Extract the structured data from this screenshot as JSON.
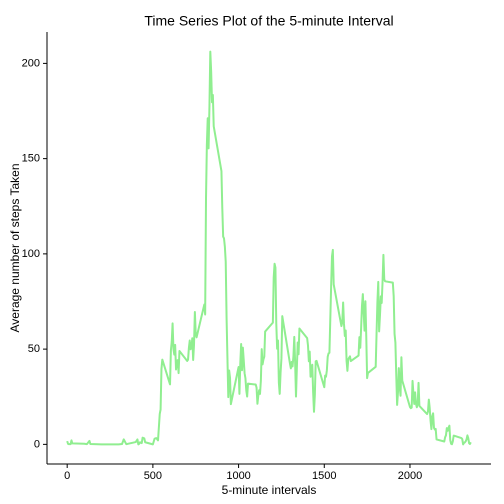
{
  "chart_data": {
    "type": "line",
    "title": "Time Series Plot of the 5-minute Interval",
    "x_label": "5-minute intervals",
    "y_label": "Average number of steps Taken",
    "xlim": [
      -117.75,
      2472.75
    ],
    "xticks": [
      0,
      500,
      1000,
      1500,
      2000
    ],
    "ylim": [
      -10.31,
      216.48
    ],
    "yticks": [
      0,
      50,
      100,
      150,
      200
    ],
    "grid": false,
    "x": [
      0,
      5,
      10,
      20,
      25,
      30,
      100,
      115,
      130,
      135,
      200,
      230,
      245,
      300,
      320,
      330,
      345,
      400,
      410,
      415,
      420,
      425,
      435,
      440,
      450,
      455,
      500,
      510,
      520,
      530,
      540,
      545,
      550,
      555,
      600,
      605,
      610,
      615,
      620,
      625,
      630,
      635,
      640,
      645,
      650,
      655,
      700,
      705,
      710,
      715,
      720,
      725,
      730,
      735,
      740,
      745,
      750,
      755,
      800,
      805,
      810,
      815,
      820,
      825,
      830,
      835,
      840,
      845,
      850,
      855,
      900,
      905,
      910,
      915,
      920,
      925,
      930,
      935,
      940,
      945,
      950,
      955,
      1000,
      1005,
      1010,
      1015,
      1020,
      1025,
      1030,
      1035,
      1040,
      1045,
      1050,
      1055,
      1100,
      1105,
      1110,
      1115,
      1120,
      1125,
      1130,
      1135,
      1140,
      1145,
      1150,
      1155,
      1200,
      1205,
      1210,
      1215,
      1220,
      1225,
      1230,
      1235,
      1240,
      1245,
      1250,
      1255,
      1300,
      1305,
      1310,
      1315,
      1320,
      1325,
      1330,
      1335,
      1340,
      1345,
      1350,
      1355,
      1400,
      1405,
      1410,
      1415,
      1420,
      1425,
      1430,
      1435,
      1440,
      1445,
      1450,
      1455,
      1500,
      1505,
      1510,
      1515,
      1520,
      1525,
      1530,
      1535,
      1540,
      1545,
      1550,
      1555,
      1600,
      1605,
      1610,
      1615,
      1620,
      1625,
      1630,
      1635,
      1640,
      1645,
      1650,
      1655,
      1700,
      1705,
      1710,
      1715,
      1720,
      1725,
      1730,
      1735,
      1740,
      1745,
      1750,
      1755,
      1800,
      1805,
      1810,
      1815,
      1820,
      1825,
      1830,
      1835,
      1840,
      1845,
      1850,
      1855,
      1900,
      1905,
      1910,
      1915,
      1920,
      1925,
      1930,
      1935,
      1940,
      1945,
      1950,
      1955,
      2000,
      2005,
      2010,
      2015,
      2020,
      2025,
      2030,
      2035,
      2040,
      2045,
      2050,
      2055,
      2100,
      2105,
      2110,
      2115,
      2120,
      2125,
      2130,
      2135,
      2140,
      2145,
      2150,
      2155,
      2200,
      2205,
      2210,
      2215,
      2220,
      2225,
      2230,
      2235,
      2240,
      2245,
      2250,
      2255,
      2300,
      2305,
      2310,
      2315,
      2320,
      2325,
      2330,
      2335,
      2340,
      2345,
      2350,
      2355
    ],
    "series": [
      {
        "name": "steps",
        "color": "#90ee90",
        "values": [
          1.7,
          0.3,
          0.1,
          0.1,
          2.1,
          0.5,
          0.3,
          0.1,
          1.8,
          0.2,
          0,
          0,
          0,
          0,
          0.2,
          2.6,
          0.1,
          1.2,
          2.6,
          0,
          0.3,
          1.1,
          0.7,
          3.5,
          3.1,
          1.1,
          0,
          3.0,
          3.3,
          2.1,
          16.0,
          18.3,
          39.5,
          44.5,
          31.5,
          49.3,
          53.8,
          63.5,
          50.0,
          47.1,
          52.2,
          39.3,
          44.0,
          44.2,
          37.4,
          49.0,
          43.8,
          44.4,
          50.5,
          54.5,
          49.9,
          51.0,
          55.7,
          44.3,
          52.3,
          69.5,
          57.8,
          56.2,
          73.4,
          68.2,
          129.4,
          157.5,
          171.2,
          155.4,
          177.3,
          206.2,
          195.9,
          179.6,
          183.4,
          167.0,
          143.5,
          124.0,
          109.1,
          108.1,
          103.7,
          95.9,
          66.2,
          45.2,
          24.8,
          38.8,
          35.0,
          21.1,
          40.6,
          26.5,
          42.4,
          52.7,
          38.9,
          50.8,
          44.3,
          37.4,
          34.7,
          28.3,
          25.1,
          31.9,
          31.4,
          29.7,
          21.3,
          25.5,
          28.4,
          26.5,
          33.4,
          50.0,
          42.0,
          44.6,
          46.0,
          59.2,
          63.9,
          87.6,
          94.8,
          92.8,
          63.4,
          50.2,
          54.5,
          32.4,
          26.5,
          37.7,
          45.1,
          67.3,
          42.3,
          39.9,
          43.3,
          40.9,
          46.2,
          56.4,
          42.8,
          25.1,
          40.0,
          53.5,
          47.3,
          60.8,
          55.8,
          51.9,
          43.6,
          48.7,
          35.5,
          37.5,
          41.8,
          27.5,
          17.1,
          26.1,
          43.6,
          43.8,
          30.0,
          36.1,
          35.5,
          38.8,
          46.0,
          47.8,
          48.1,
          65.3,
          82.9,
          98.7,
          102.1,
          83.96,
          62.1,
          64.1,
          74.5,
          63.2,
          56.9,
          59.8,
          43.9,
          38.6,
          44.7,
          45.5,
          46.2,
          43.7,
          46.6,
          56.3,
          50.7,
          61.2,
          72.7,
          78.9,
          68.9,
          59.7,
          75.1,
          56.5,
          34.8,
          37.5,
          40.7,
          58.0,
          74.7,
          85.3,
          59.3,
          67.8,
          77.7,
          74.2,
          85.3,
          99.5,
          86.6,
          85.6,
          84.9,
          77.8,
          58.0,
          53.4,
          36.3,
          20.7,
          27.4,
          40.0,
          30.2,
          25.5,
          45.7,
          33.5,
          19.6,
          19.0,
          19.3,
          33.3,
          26.8,
          21.2,
          27.3,
          21.3,
          19.5,
          21.3,
          32.3,
          20.2,
          15.9,
          17.2,
          23.5,
          19.2,
          12.5,
          8.0,
          14.7,
          16.3,
          8.7,
          7.8,
          8.1,
          2.6,
          1.5,
          3.7,
          4.8,
          8.5,
          7.1,
          8.7,
          9.8,
          2.2,
          0.3,
          0.1,
          1.6,
          4.6,
          3.3,
          2.8,
          0,
          0.8,
          1.0,
          1.6,
          2.6,
          4.7,
          3.3,
          0.6,
          0.2,
          1.1
        ]
      }
    ]
  }
}
